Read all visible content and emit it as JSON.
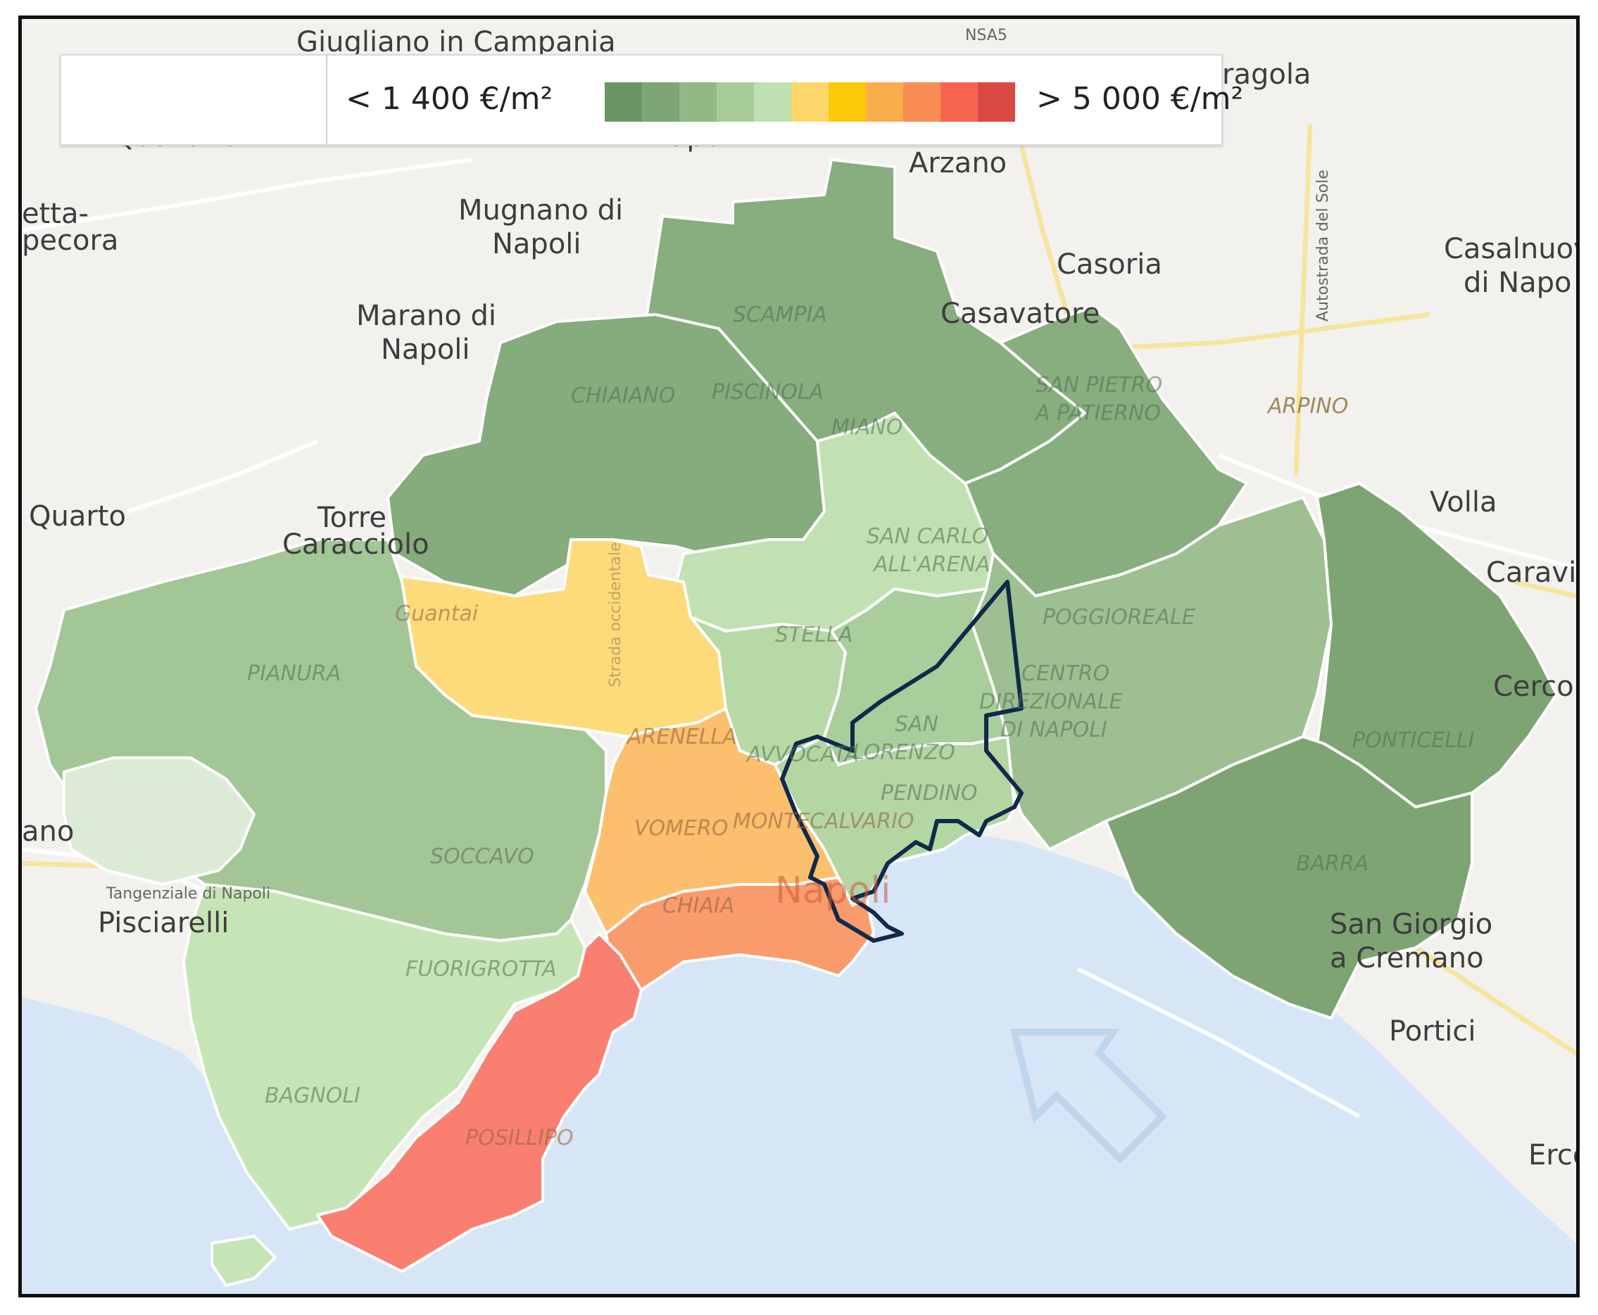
{
  "legend": {
    "min_label": "< 1 400 €/m²",
    "max_label": "> 5 000 €/m²",
    "colors": [
      "#6a9663",
      "#7da575",
      "#92b886",
      "#a7cc99",
      "#bfe0b0",
      "#fdd769",
      "#fcc80a",
      "#f9ad4b",
      "#f98e55",
      "#f76450",
      "#d94a45"
    ]
  },
  "places": {
    "giugliano": "Giugliano in Campania",
    "qualiano": "Qualiano",
    "napoli_top": "Napoli",
    "afragola": "ragola",
    "arzano": "Arzano",
    "mugnano": "Mugnano di Napoli",
    "casoria": "Casoria",
    "casalnuovo": "Casalnuov di Napo",
    "marano": "Marano di Napoli",
    "casavatore": "Casavatore",
    "villaricca": "etta- pecora",
    "quarto": "Quarto",
    "torre": "Torre Caracciolo",
    "volla": "Volla",
    "cercola": "Cerco",
    "caravita": "Caravit",
    "pozzuoli": "ano",
    "pisciarelli": "Pisciarelli",
    "san_giorgio": "San Giorgio a Cremano",
    "portici": "Portici",
    "ercolano": "Erco",
    "arpino": "ARPINO",
    "napoli_center": "Napoli"
  },
  "roads": {
    "autostrada": "Autostrada del Sole",
    "tangenziale": "Tangenziale di Napoli",
    "strada_occ": "Strada occidentale",
    "nsa": "NSA5"
  },
  "districts": {
    "scampia": "SCAMPIA",
    "chiaiano": "CHIAIANO",
    "piscinola": "PISCINOLA",
    "miano": "MIANO",
    "san_pietro": "SAN PIETRO A PATIERNO",
    "san_carlo": "SAN CARLO ALL'ARENA",
    "stella": "STELLA",
    "poggioreale": "POGGIOREALE",
    "guantai": "Guantai",
    "pianura": "PIANURA",
    "arenella": "ARENELLA",
    "avvocata": "AVVOCATA",
    "san_lorenzo": "SAN LORENZO",
    "centro_dir": "CENTRO DIREZIONALE DI NAPOLI",
    "pendino": "PENDINO",
    "montecalvario": "MONTECALVARIO",
    "vomero": "VOMERO",
    "ponticelli": "PONTICELLI",
    "soccavo": "SOCCAVO",
    "barra": "BARRA",
    "chiaia": "CHIAIA",
    "fuorigrotta": "FUORIGROTTA",
    "bagnoli": "BAGNOLI",
    "posillipo": "POSILLIPO"
  }
}
